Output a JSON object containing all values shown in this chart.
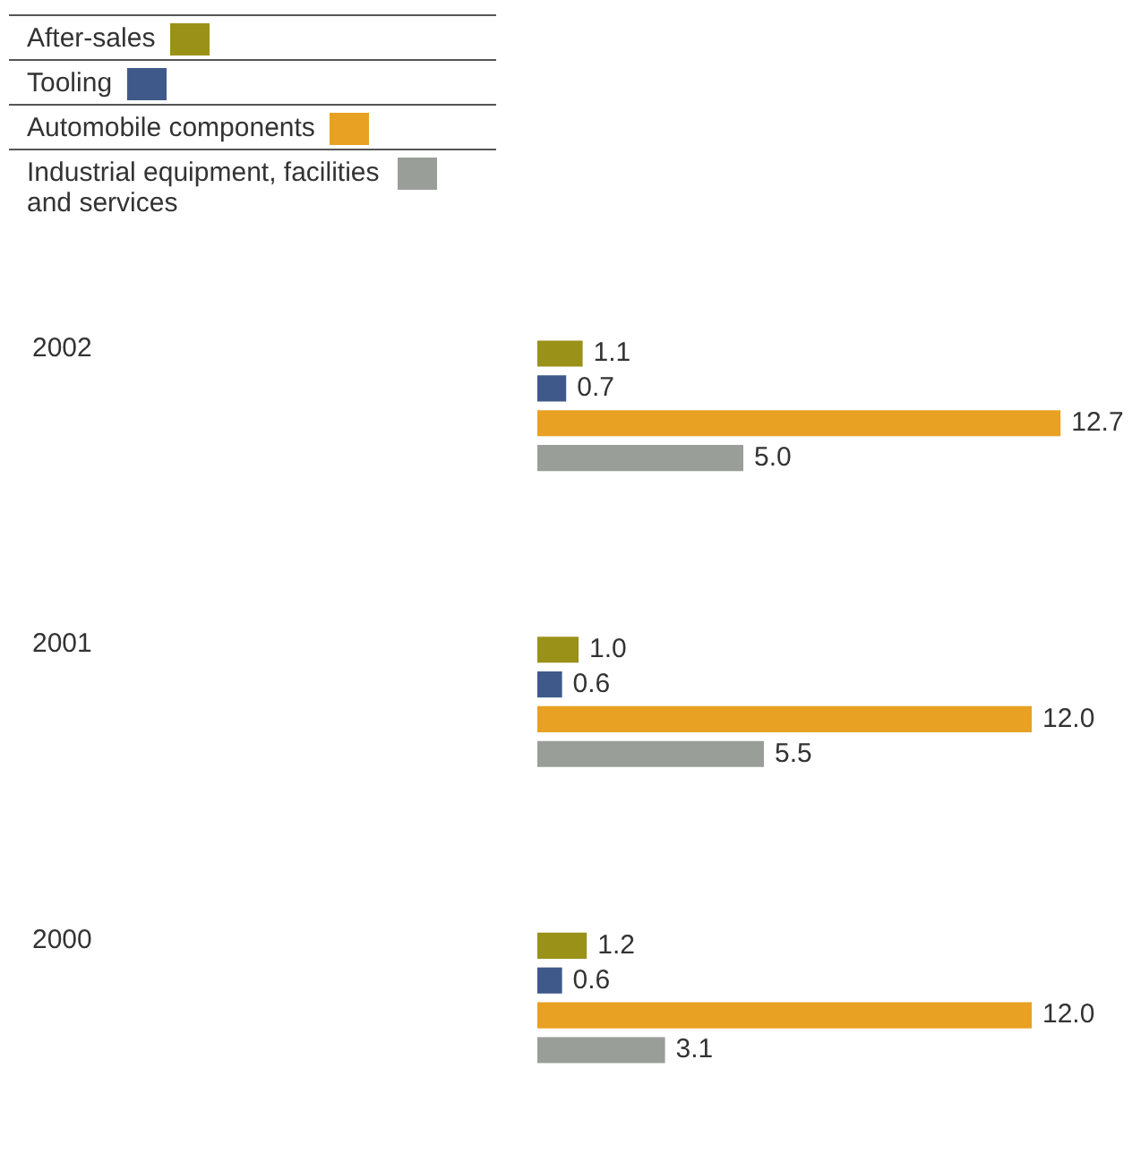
{
  "chart_data": {
    "type": "bar",
    "orientation": "horizontal",
    "categories": [
      "2002",
      "2001",
      "2000"
    ],
    "series": [
      {
        "name": "After-sales",
        "color": "#9a9119",
        "values": [
          1.1,
          1.0,
          1.2
        ],
        "value_labels": [
          "1.1",
          "1.0",
          "1.2"
        ]
      },
      {
        "name": "Tooling",
        "color": "#3f5a8a",
        "values": [
          0.7,
          0.6,
          0.6
        ],
        "value_labels": [
          "0.7",
          "0.6",
          "0.6"
        ]
      },
      {
        "name": "Automobile components",
        "color": "#e8a123",
        "values": [
          12.7,
          12.0,
          12.0
        ],
        "value_labels": [
          "12.7",
          "12.0",
          "12.0"
        ]
      },
      {
        "name": "Industrial equipment, facilities and services",
        "color": "#9a9e98",
        "values": [
          5.0,
          5.5,
          3.1
        ],
        "value_labels": [
          "5.0",
          "5.5",
          "3.1"
        ]
      }
    ],
    "legend": "top left",
    "tick_labels": "y"
  }
}
